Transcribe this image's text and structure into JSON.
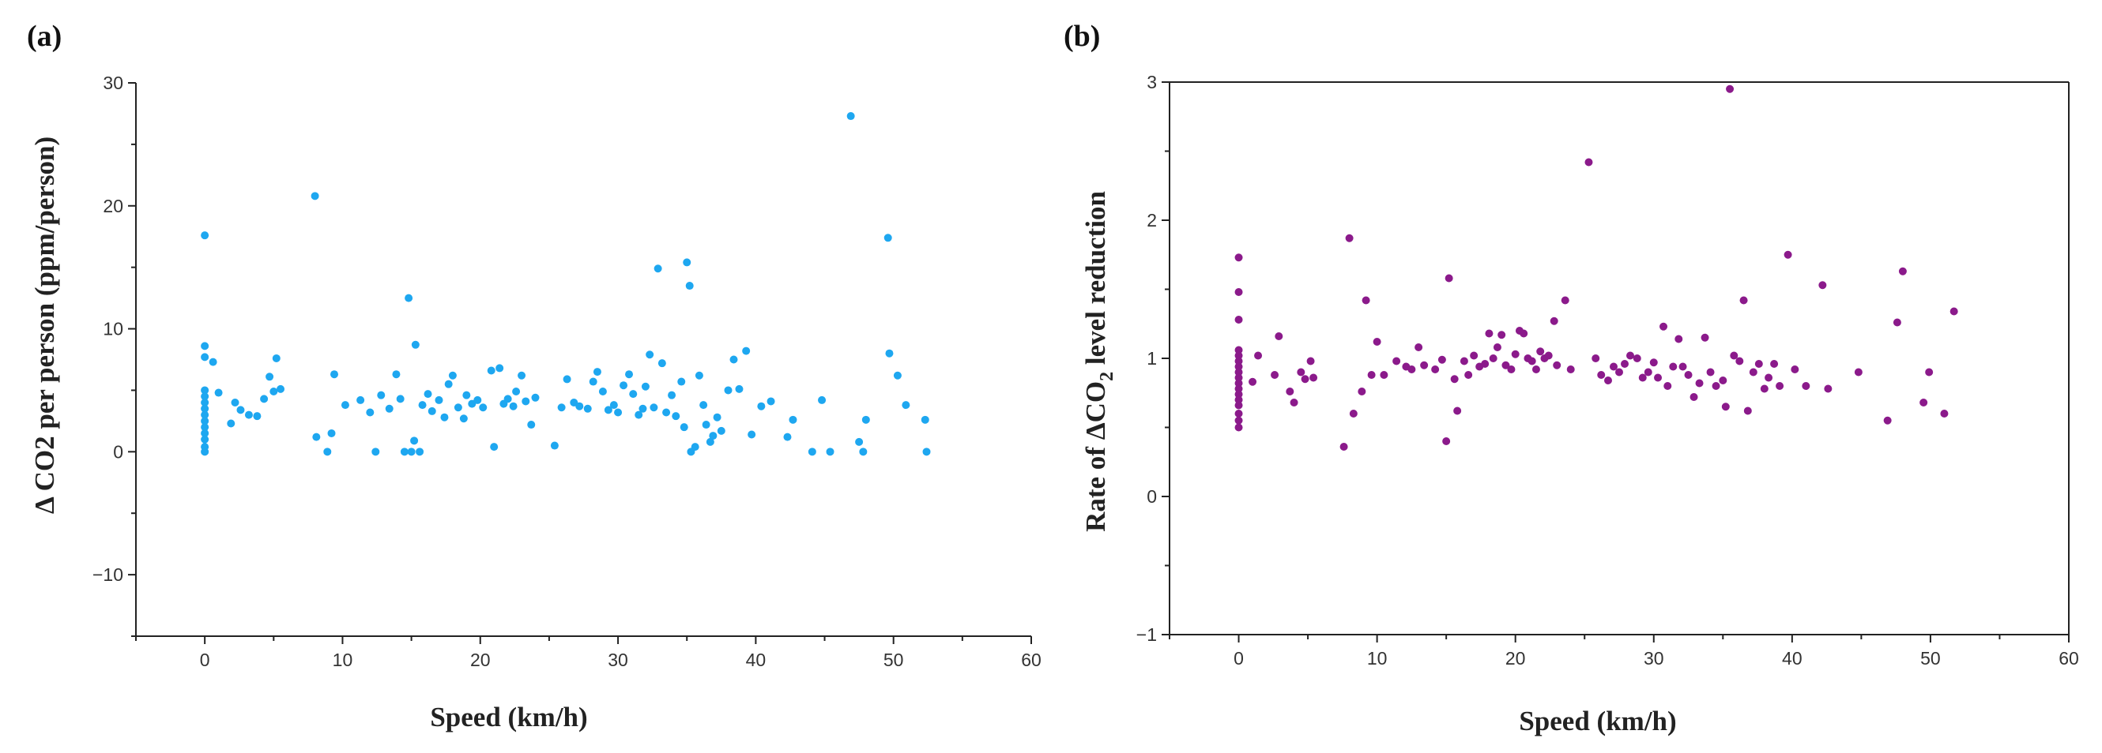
{
  "chart_data": [
    {
      "panel_label": "(a)",
      "type": "scatter",
      "title": "",
      "xlabel": "Speed (km/h)",
      "ylabel": "Δ CO2 per person (ppm/person)",
      "xlim": [
        -5,
        60
      ],
      "ylim": [
        -15,
        30
      ],
      "xticks": [
        0,
        10,
        20,
        30,
        40,
        50,
        60
      ],
      "yticks": [
        -10,
        0,
        10,
        20,
        30
      ],
      "xtick_labels": [
        "0",
        "10",
        "20",
        "30",
        "40",
        "50",
        "60"
      ],
      "ytick_labels": [
        "−10",
        "0",
        "10",
        "20",
        "30"
      ],
      "frame": "left-bottom",
      "grid": false,
      "color": "#1ea7f0",
      "points": [
        [
          0,
          17.6
        ],
        [
          0,
          8.6
        ],
        [
          0,
          7.7
        ],
        [
          0,
          5.0
        ],
        [
          0,
          4.5
        ],
        [
          0,
          4.0
        ],
        [
          0,
          3.5
        ],
        [
          0,
          3.0
        ],
        [
          0,
          2.5
        ],
        [
          0,
          2.0
        ],
        [
          0,
          1.5
        ],
        [
          0,
          1.0
        ],
        [
          0,
          0.4
        ],
        [
          0,
          0
        ],
        [
          0.6,
          7.3
        ],
        [
          1,
          4.8
        ],
        [
          1.9,
          2.3
        ],
        [
          2.2,
          4.0
        ],
        [
          2.6,
          3.4
        ],
        [
          3.2,
          3.0
        ],
        [
          3.8,
          2.9
        ],
        [
          4.3,
          4.3
        ],
        [
          4.7,
          6.1
        ],
        [
          5,
          4.9
        ],
        [
          5.2,
          7.6
        ],
        [
          5.5,
          5.1
        ],
        [
          8,
          20.8
        ],
        [
          8.1,
          1.2
        ],
        [
          8.9,
          0
        ],
        [
          9.2,
          1.5
        ],
        [
          9.4,
          6.3
        ],
        [
          10.2,
          3.8
        ],
        [
          11.3,
          4.2
        ],
        [
          12,
          3.2
        ],
        [
          12.4,
          0
        ],
        [
          12.8,
          4.6
        ],
        [
          13.4,
          3.5
        ],
        [
          13.9,
          6.3
        ],
        [
          14.2,
          4.3
        ],
        [
          14.5,
          0
        ],
        [
          14.8,
          12.5
        ],
        [
          15,
          0
        ],
        [
          15.2,
          0.9
        ],
        [
          15.3,
          8.7
        ],
        [
          15.6,
          0
        ],
        [
          15.8,
          3.8
        ],
        [
          16.2,
          4.7
        ],
        [
          16.5,
          3.3
        ],
        [
          17,
          4.2
        ],
        [
          17.4,
          2.8
        ],
        [
          17.7,
          5.5
        ],
        [
          18,
          6.2
        ],
        [
          18.4,
          3.6
        ],
        [
          18.8,
          2.7
        ],
        [
          19,
          4.6
        ],
        [
          19.4,
          3.9
        ],
        [
          19.8,
          4.2
        ],
        [
          20.2,
          3.6
        ],
        [
          20.8,
          6.6
        ],
        [
          21,
          0.4
        ],
        [
          21.4,
          6.8
        ],
        [
          21.7,
          3.9
        ],
        [
          22,
          4.3
        ],
        [
          22.4,
          3.7
        ],
        [
          22.6,
          4.9
        ],
        [
          23,
          6.2
        ],
        [
          23.3,
          4.1
        ],
        [
          23.7,
          2.2
        ],
        [
          24,
          4.4
        ],
        [
          25.4,
          0.5
        ],
        [
          25.9,
          3.6
        ],
        [
          26.3,
          5.9
        ],
        [
          26.8,
          4.0
        ],
        [
          27.2,
          3.7
        ],
        [
          27.8,
          3.5
        ],
        [
          28.2,
          5.7
        ],
        [
          28.5,
          6.5
        ],
        [
          28.9,
          4.9
        ],
        [
          29.3,
          3.4
        ],
        [
          29.7,
          3.8
        ],
        [
          30,
          3.2
        ],
        [
          30.4,
          5.4
        ],
        [
          30.8,
          6.3
        ],
        [
          31.1,
          4.7
        ],
        [
          31.5,
          3.0
        ],
        [
          31.8,
          3.5
        ],
        [
          32,
          5.3
        ],
        [
          32.3,
          7.9
        ],
        [
          32.6,
          3.6
        ],
        [
          32.9,
          14.9
        ],
        [
          33.2,
          7.2
        ],
        [
          33.5,
          3.2
        ],
        [
          33.9,
          4.6
        ],
        [
          34.2,
          2.9
        ],
        [
          34.6,
          5.7
        ],
        [
          34.8,
          2.0
        ],
        [
          35,
          15.4
        ],
        [
          35.2,
          13.5
        ],
        [
          35.3,
          0
        ],
        [
          35.6,
          0.4
        ],
        [
          35.9,
          6.2
        ],
        [
          36.2,
          3.8
        ],
        [
          36.4,
          2.2
        ],
        [
          36.7,
          0.8
        ],
        [
          36.9,
          1.3
        ],
        [
          37.2,
          2.8
        ],
        [
          37.5,
          1.7
        ],
        [
          38,
          5.0
        ],
        [
          38.4,
          7.5
        ],
        [
          38.8,
          5.1
        ],
        [
          39.3,
          8.2
        ],
        [
          39.7,
          1.4
        ],
        [
          40.4,
          3.7
        ],
        [
          41.1,
          4.1
        ],
        [
          42.3,
          1.2
        ],
        [
          42.7,
          2.6
        ],
        [
          44.1,
          0
        ],
        [
          44.8,
          4.2
        ],
        [
          45.4,
          0
        ],
        [
          46.9,
          27.3
        ],
        [
          47.5,
          0.8
        ],
        [
          47.8,
          0
        ],
        [
          48,
          2.6
        ],
        [
          49.6,
          17.4
        ],
        [
          49.7,
          8.0
        ],
        [
          50.3,
          6.2
        ],
        [
          50.9,
          3.8
        ],
        [
          52.3,
          2.6
        ],
        [
          52.4,
          0
        ]
      ]
    },
    {
      "panel_label": "(b)",
      "type": "scatter",
      "title": "",
      "xlabel": "Speed (km/h)",
      "ylabel_parts": [
        "Rate of ΔCO",
        "2",
        " level reduction"
      ],
      "xlim": [
        -5,
        60
      ],
      "ylim": [
        -1,
        3
      ],
      "xticks": [
        0,
        10,
        20,
        30,
        40,
        50,
        60
      ],
      "yticks": [
        -1,
        0,
        1,
        2,
        3
      ],
      "xtick_labels": [
        "0",
        "10",
        "20",
        "30",
        "40",
        "50",
        "60"
      ],
      "ytick_labels": [
        "−1",
        "0",
        "1",
        "2",
        "3"
      ],
      "frame": "box",
      "grid": false,
      "color": "#8b1a8b",
      "points": [
        [
          0,
          1.73
        ],
        [
          0,
          1.48
        ],
        [
          0,
          1.28
        ],
        [
          0,
          1.06
        ],
        [
          0,
          1.02
        ],
        [
          0,
          0.98
        ],
        [
          0,
          0.94
        ],
        [
          0,
          0.9
        ],
        [
          0,
          0.86
        ],
        [
          0,
          0.82
        ],
        [
          0,
          0.78
        ],
        [
          0,
          0.74
        ],
        [
          0,
          0.7
        ],
        [
          0,
          0.66
        ],
        [
          0,
          0.6
        ],
        [
          0,
          0.55
        ],
        [
          0,
          0.5
        ],
        [
          1,
          0.83
        ],
        [
          1.4,
          1.02
        ],
        [
          2.6,
          0.88
        ],
        [
          2.9,
          1.16
        ],
        [
          3.7,
          0.76
        ],
        [
          4,
          0.68
        ],
        [
          4.5,
          0.9
        ],
        [
          4.8,
          0.85
        ],
        [
          5.2,
          0.98
        ],
        [
          5.4,
          0.86
        ],
        [
          7.6,
          0.36
        ],
        [
          8,
          1.87
        ],
        [
          8.3,
          0.6
        ],
        [
          8.9,
          0.76
        ],
        [
          9.2,
          1.42
        ],
        [
          9.6,
          0.88
        ],
        [
          10,
          1.12
        ],
        [
          10.5,
          0.88
        ],
        [
          11.4,
          0.98
        ],
        [
          12.1,
          0.94
        ],
        [
          12.5,
          0.92
        ],
        [
          13,
          1.08
        ],
        [
          13.4,
          0.95
        ],
        [
          14.2,
          0.92
        ],
        [
          14.7,
          0.99
        ],
        [
          15,
          0.4
        ],
        [
          15.2,
          1.58
        ],
        [
          15.6,
          0.85
        ],
        [
          15.8,
          0.62
        ],
        [
          16.3,
          0.98
        ],
        [
          16.6,
          0.88
        ],
        [
          17,
          1.02
        ],
        [
          17.4,
          0.94
        ],
        [
          17.8,
          0.96
        ],
        [
          18.1,
          1.18
        ],
        [
          18.4,
          1.0
        ],
        [
          18.7,
          1.08
        ],
        [
          19,
          1.17
        ],
        [
          19.3,
          0.95
        ],
        [
          19.7,
          0.92
        ],
        [
          20,
          1.03
        ],
        [
          20.3,
          1.2
        ],
        [
          20.6,
          1.18
        ],
        [
          20.9,
          1.0
        ],
        [
          21.2,
          0.98
        ],
        [
          21.5,
          0.92
        ],
        [
          21.8,
          1.05
        ],
        [
          22.1,
          1.0
        ],
        [
          22.4,
          1.02
        ],
        [
          22.8,
          1.27
        ],
        [
          23,
          0.95
        ],
        [
          23.6,
          1.42
        ],
        [
          24,
          0.92
        ],
        [
          25.3,
          2.42
        ],
        [
          25.8,
          1.0
        ],
        [
          26.2,
          0.88
        ],
        [
          26.7,
          0.84
        ],
        [
          27.1,
          0.94
        ],
        [
          27.5,
          0.9
        ],
        [
          27.9,
          0.96
        ],
        [
          28.3,
          1.02
        ],
        [
          28.8,
          1.0
        ],
        [
          29.2,
          0.86
        ],
        [
          29.6,
          0.9
        ],
        [
          30,
          0.97
        ],
        [
          30.3,
          0.86
        ],
        [
          30.7,
          1.23
        ],
        [
          31,
          0.8
        ],
        [
          31.4,
          0.94
        ],
        [
          31.8,
          1.14
        ],
        [
          32.1,
          0.94
        ],
        [
          32.5,
          0.88
        ],
        [
          32.9,
          0.72
        ],
        [
          33.3,
          0.82
        ],
        [
          33.7,
          1.15
        ],
        [
          34.1,
          0.9
        ],
        [
          34.5,
          0.8
        ],
        [
          35,
          0.84
        ],
        [
          35.2,
          0.65
        ],
        [
          35.5,
          2.95
        ],
        [
          35.8,
          1.02
        ],
        [
          36.2,
          0.98
        ],
        [
          36.5,
          1.42
        ],
        [
          36.8,
          0.62
        ],
        [
          37.2,
          0.9
        ],
        [
          37.6,
          0.96
        ],
        [
          38,
          0.78
        ],
        [
          38.3,
          0.86
        ],
        [
          38.7,
          0.96
        ],
        [
          39.1,
          0.8
        ],
        [
          39.7,
          1.75
        ],
        [
          40.2,
          0.92
        ],
        [
          41,
          0.8
        ],
        [
          42.2,
          1.53
        ],
        [
          42.6,
          0.78
        ],
        [
          44.8,
          0.9
        ],
        [
          46.9,
          0.55
        ],
        [
          47.6,
          1.26
        ],
        [
          48,
          1.63
        ],
        [
          49.5,
          0.68
        ],
        [
          49.9,
          0.9
        ],
        [
          51,
          0.6
        ],
        [
          51.7,
          1.34
        ]
      ]
    }
  ]
}
